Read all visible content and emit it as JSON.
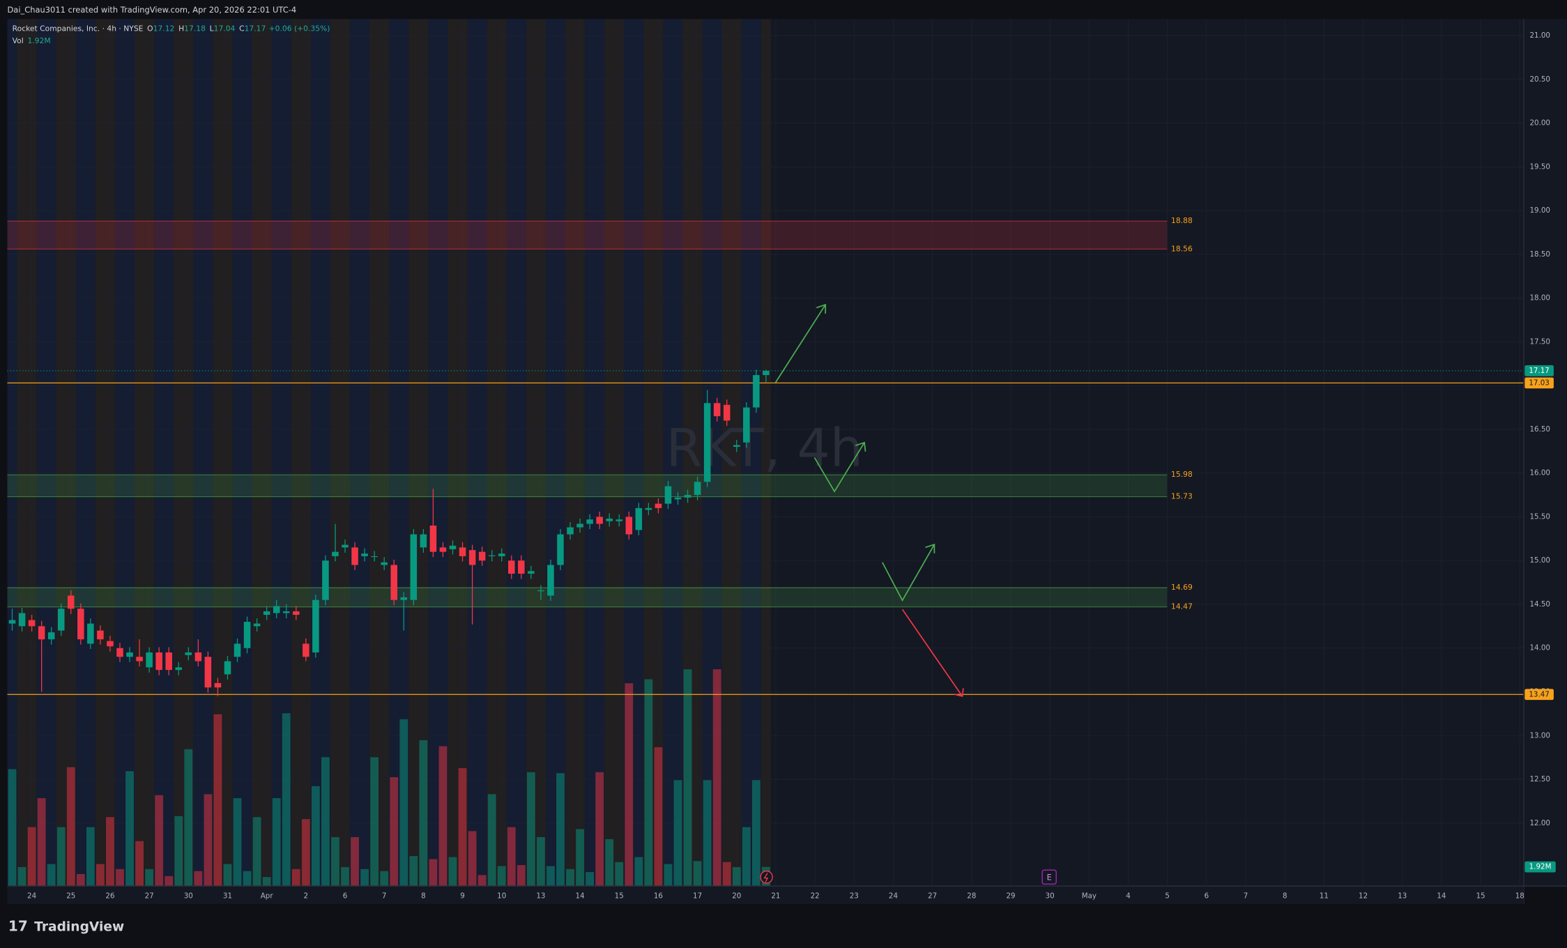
{
  "header": "Dai_Chau3011 created with TradingView.com, Apr 20, 2026 22:01 UTC-4",
  "footer_brand": "TradingView",
  "chart_data": {
    "type": "candlestick",
    "watermark": "RKT, 4h",
    "legend": {
      "symbol": "Rocket Companies, Inc. · 4h · NYSE",
      "ohlc": [
        {
          "key": "O",
          "value": "17.12"
        },
        {
          "key": "H",
          "value": "17.18"
        },
        {
          "key": "L",
          "value": "17.04"
        },
        {
          "key": "C",
          "value": "17.17"
        }
      ],
      "change": "+0.06 (+0.35%)",
      "volume_name": "Vol",
      "volume_label": "1.92M"
    },
    "up_color": "#089981",
    "down_color": "#f23645",
    "open": [
      14.28,
      14.25,
      14.32,
      14.25,
      14.1,
      14.2,
      14.6,
      14.45,
      14.05,
      14.2,
      14.08,
      14.0,
      13.9,
      13.9,
      13.78,
      13.95,
      13.95,
      13.75,
      13.92,
      13.95,
      13.9,
      13.6,
      13.7,
      13.9,
      14.0,
      14.25,
      14.38,
      14.4,
      14.4,
      14.42,
      14.05,
      13.95,
      14.55,
      15.05,
      15.15,
      15.15,
      15.05,
      15.05,
      14.95,
      14.95,
      14.55,
      14.55,
      15.15,
      15.4,
      15.15,
      15.13,
      15.15,
      15.12,
      15.1,
      15.05,
      15.05,
      15.0,
      15.0,
      14.85,
      14.65,
      14.6,
      14.95,
      15.3,
      15.38,
      15.42,
      15.5,
      15.45,
      15.45,
      15.5,
      15.35,
      15.58,
      15.65,
      15.65,
      15.7,
      15.72,
      15.75,
      15.9,
      16.8,
      16.78,
      16.3,
      16.35,
      16.75,
      17.12
    ],
    "high": [
      14.45,
      14.46,
      14.38,
      14.31,
      14.24,
      14.51,
      14.66,
      14.51,
      14.34,
      14.26,
      14.14,
      14.06,
      14.01,
      14.1,
      14.01,
      14.01,
      14.01,
      13.84,
      14.01,
      14.1,
      13.96,
      13.66,
      13.91,
      14.11,
      14.36,
      14.34,
      14.48,
      14.55,
      14.5,
      14.48,
      14.11,
      14.61,
      15.06,
      15.42,
      15.24,
      15.21,
      15.14,
      15.11,
      15.04,
      15.01,
      14.64,
      15.36,
      15.36,
      15.82,
      15.21,
      15.23,
      15.21,
      15.18,
      15.16,
      15.12,
      15.14,
      15.06,
      15.06,
      14.94,
      14.72,
      15.01,
      15.36,
      15.44,
      15.48,
      15.53,
      15.56,
      15.54,
      15.53,
      15.56,
      15.66,
      15.66,
      15.71,
      15.91,
      15.78,
      15.81,
      15.96,
      16.95,
      16.86,
      16.84,
      16.38,
      16.81,
      17.18,
      17.18
    ],
    "low": [
      14.2,
      14.19,
      14.19,
      13.5,
      14.04,
      14.14,
      14.39,
      14.04,
      13.99,
      14.04,
      13.96,
      13.84,
      13.84,
      13.79,
      13.72,
      13.69,
      13.69,
      13.69,
      13.86,
      13.79,
      13.49,
      13.45,
      13.64,
      13.84,
      13.94,
      14.19,
      14.32,
      14.34,
      14.34,
      14.32,
      13.85,
      13.89,
      14.49,
      14.99,
      15.09,
      14.89,
      14.99,
      14.99,
      14.89,
      14.49,
      14.2,
      14.49,
      15.09,
      15.04,
      15.04,
      15.07,
      14.99,
      14.27,
      14.94,
      14.99,
      14.99,
      14.79,
      14.79,
      14.79,
      14.55,
      14.54,
      14.89,
      15.24,
      15.32,
      15.36,
      15.36,
      15.39,
      15.39,
      15.24,
      15.29,
      15.52,
      15.54,
      15.59,
      15.64,
      15.66,
      15.69,
      15.84,
      16.59,
      16.54,
      16.24,
      16.29,
      16.69,
      17.04
    ],
    "close": [
      14.32,
      14.4,
      14.25,
      14.1,
      14.18,
      14.45,
      14.45,
      14.1,
      14.28,
      14.1,
      14.02,
      13.9,
      13.95,
      13.85,
      13.95,
      13.75,
      13.75,
      13.78,
      13.95,
      13.85,
      13.55,
      13.55,
      13.85,
      14.05,
      14.3,
      14.28,
      14.42,
      14.48,
      14.42,
      14.38,
      13.9,
      14.55,
      15.0,
      15.1,
      15.18,
      14.95,
      15.08,
      15.05,
      14.98,
      14.55,
      14.58,
      15.3,
      15.3,
      15.1,
      15.1,
      15.17,
      15.05,
      14.95,
      15.0,
      15.06,
      15.08,
      14.85,
      14.85,
      14.88,
      14.66,
      14.95,
      15.3,
      15.38,
      15.42,
      15.47,
      15.42,
      15.48,
      15.47,
      15.3,
      15.6,
      15.6,
      15.6,
      15.85,
      15.72,
      15.75,
      15.9,
      16.8,
      16.65,
      16.6,
      16.32,
      16.75,
      17.12,
      17.17
    ],
    "volume": [
      11.7,
      1.9,
      5.9,
      8.8,
      2.2,
      5.9,
      11.9,
      1.2,
      5.9,
      2.2,
      6.9,
      1.7,
      11.5,
      4.5,
      1.7,
      9.1,
      1.0,
      7.0,
      13.7,
      1.5,
      9.2,
      17.2,
      2.2,
      8.8,
      1.5,
      6.9,
      0.9,
      8.8,
      17.3,
      1.7,
      6.7,
      10.0,
      12.9,
      4.9,
      1.9,
      4.9,
      1.7,
      12.9,
      1.5,
      10.9,
      16.7,
      3.0,
      14.6,
      2.7,
      14.0,
      2.9,
      11.8,
      5.5,
      1.1,
      9.2,
      2.0,
      5.9,
      2.1,
      11.4,
      4.9,
      2.0,
      11.3,
      1.7,
      5.7,
      1.4,
      11.4,
      4.7,
      2.4,
      20.3,
      2.9,
      20.7,
      13.9,
      2.2,
      10.6,
      21.7,
      2.5,
      10.6,
      21.7,
      2.4,
      1.9,
      5.9,
      10.6,
      1.92
    ],
    "volume_ylim": [
      0,
      86.8
    ],
    "xlim": [
      -0.5,
      154.4
    ],
    "ylim": [
      11.28,
      21.19
    ],
    "xticks": [
      {
        "value": 2,
        "label": "24"
      },
      {
        "value": 6,
        "label": "25"
      },
      {
        "value": 10,
        "label": "26"
      },
      {
        "value": 14,
        "label": "27"
      },
      {
        "value": 18,
        "label": "30"
      },
      {
        "value": 22,
        "label": "31"
      },
      {
        "value": 26,
        "label": "Apr"
      },
      {
        "value": 30,
        "label": "2"
      },
      {
        "value": 34,
        "label": "6"
      },
      {
        "value": 38,
        "label": "7"
      },
      {
        "value": 42,
        "label": "8"
      },
      {
        "value": 46,
        "label": "9"
      },
      {
        "value": 50,
        "label": "10"
      },
      {
        "value": 54,
        "label": "13"
      },
      {
        "value": 58,
        "label": "14"
      },
      {
        "value": 62,
        "label": "15"
      },
      {
        "value": 66,
        "label": "16"
      },
      {
        "value": 70,
        "label": "17"
      },
      {
        "value": 74,
        "label": "20"
      },
      {
        "value": 78,
        "label": "21"
      },
      {
        "value": 82,
        "label": "22"
      },
      {
        "value": 86,
        "label": "23"
      },
      {
        "value": 90,
        "label": "24"
      },
      {
        "value": 94,
        "label": "27"
      },
      {
        "value": 98,
        "label": "28"
      },
      {
        "value": 102,
        "label": "29"
      },
      {
        "value": 106,
        "label": "30"
      },
      {
        "value": 110,
        "label": "May"
      },
      {
        "value": 114,
        "label": "4"
      },
      {
        "value": 118,
        "label": "5"
      },
      {
        "value": 122,
        "label": "6"
      },
      {
        "value": 126,
        "label": "7"
      },
      {
        "value": 130,
        "label": "8"
      },
      {
        "value": 134,
        "label": "11"
      },
      {
        "value": 138,
        "label": "12"
      },
      {
        "value": 142,
        "label": "13"
      },
      {
        "value": 146,
        "label": "14"
      },
      {
        "value": 150,
        "label": "15"
      },
      {
        "value": 154,
        "label": "18"
      }
    ],
    "yticks": [
      {
        "value": 12,
        "label": "12.00"
      },
      {
        "value": 12.5,
        "label": "12.50"
      },
      {
        "value": 13,
        "label": "13.00"
      },
      {
        "value": 13.5,
        "label": "13.50"
      },
      {
        "value": 14,
        "label": "14.00"
      },
      {
        "value": 14.5,
        "label": "14.50"
      },
      {
        "value": 15,
        "label": "15.00"
      },
      {
        "value": 15.5,
        "label": "15.50"
      },
      {
        "value": 16,
        "label": "16.00"
      },
      {
        "value": 16.5,
        "label": "16.50"
      },
      {
        "value": 17,
        "label": "17.00"
      },
      {
        "value": 17.5,
        "label": "17.50"
      },
      {
        "value": 18,
        "label": "18.00"
      },
      {
        "value": 18.5,
        "label": "18.50"
      },
      {
        "value": 19,
        "label": "19.00"
      },
      {
        "value": 19.5,
        "label": "19.50"
      },
      {
        "value": 20,
        "label": "20.00"
      },
      {
        "value": 20.5,
        "label": "20.50"
      },
      {
        "value": 21,
        "label": "21.00"
      }
    ],
    "grid": true,
    "zones": [
      {
        "top": 18.88,
        "bottom": 18.56,
        "color": "#f23645"
      },
      {
        "top": 15.98,
        "bottom": 15.73,
        "color": "#4caf50"
      },
      {
        "top": 14.69,
        "bottom": 14.47,
        "color": "#4caf50"
      }
    ],
    "lines": [
      {
        "value": 17.03,
        "color": "#f7a21b"
      },
      {
        "value": 13.47,
        "color": "#f7a21b"
      }
    ],
    "event_marker": "E"
  }
}
